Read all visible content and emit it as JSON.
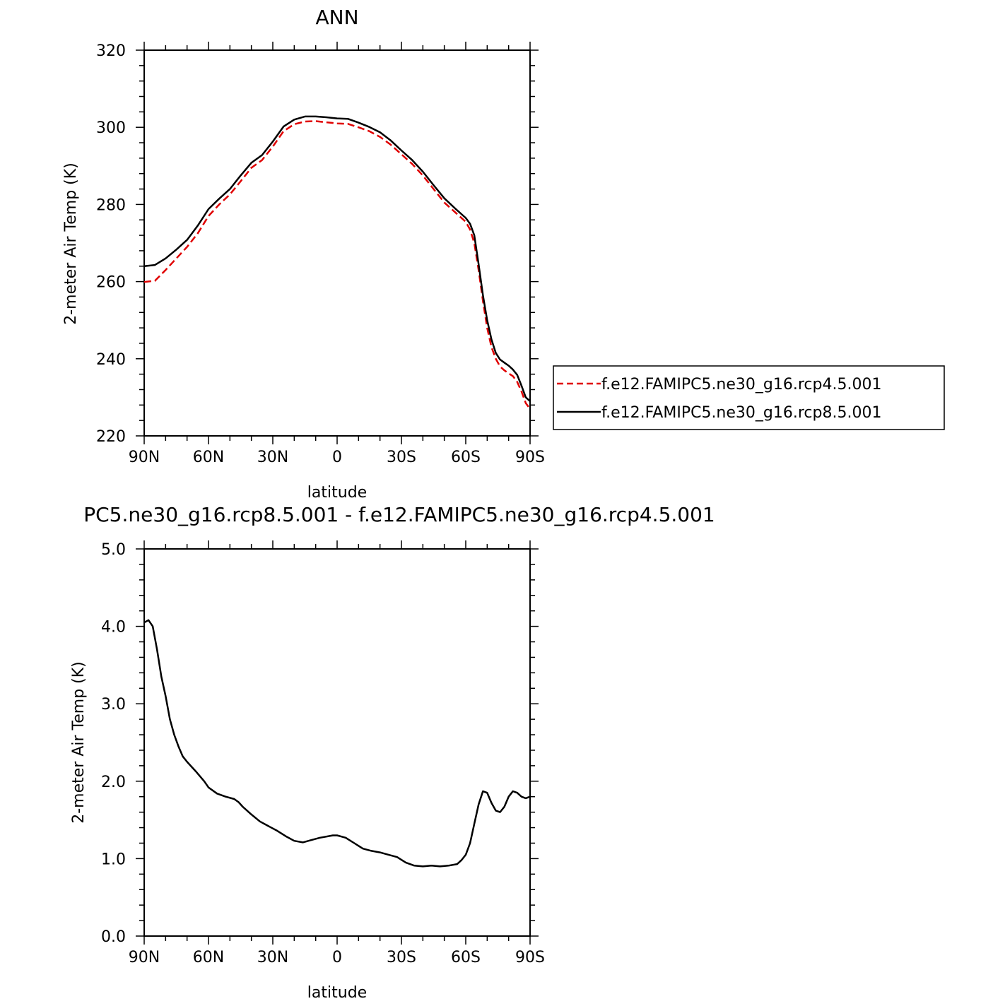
{
  "colors": {
    "series_rcp45": "#e00000",
    "series_rcp85": "#000000",
    "axis": "#000000"
  },
  "chart_data": [
    {
      "type": "line",
      "title": "ANN",
      "xlabel": "latitude",
      "ylabel": "2-meter Air Temp (K)",
      "xlim": [
        90,
        -90
      ],
      "ylim": [
        220,
        320
      ],
      "x_ticks": [
        90,
        60,
        30,
        0,
        -30,
        -60,
        -90
      ],
      "x_tick_labels": [
        "90N",
        "60N",
        "30N",
        "0",
        "30S",
        "60S",
        "90S"
      ],
      "y_ticks": [
        220,
        240,
        260,
        280,
        300,
        320
      ],
      "y_tick_labels": [
        "220",
        "240",
        "260",
        "280",
        "300",
        "320"
      ],
      "legend_position": "right",
      "grid": false,
      "series": [
        {
          "name": "f.e12.FAMIPC5.ne30_g16.rcp4.5.001",
          "style": "dashed",
          "color": "#e00000",
          "x": [
            90,
            85,
            80,
            75,
            70,
            65,
            60,
            55,
            50,
            45,
            40,
            35,
            30,
            25,
            20,
            15,
            10,
            5,
            0,
            -5,
            -10,
            -15,
            -20,
            -25,
            -30,
            -35,
            -40,
            -45,
            -50,
            -55,
            -60,
            -62,
            -64,
            -66,
            -68,
            -70,
            -72,
            -74,
            -76,
            -78,
            -80,
            -82,
            -84,
            -86,
            -88,
            -90
          ],
          "y": [
            259.9,
            260.2,
            263.0,
            266.0,
            269.0,
            272.5,
            277.0,
            280.0,
            282.6,
            286.0,
            289.5,
            291.5,
            295.0,
            299.0,
            300.8,
            301.5,
            301.6,
            301.3,
            301.0,
            300.9,
            300.0,
            299.0,
            297.5,
            295.5,
            293.0,
            290.5,
            287.5,
            284.0,
            280.5,
            278.0,
            275.5,
            273.5,
            270.0,
            263.0,
            255.0,
            248.0,
            243.0,
            240.0,
            238.0,
            237.0,
            236.2,
            235.5,
            234.0,
            231.5,
            228.5,
            227.0
          ]
        },
        {
          "name": "f.e12.FAMIPC5.ne30_g16.rcp8.5.001",
          "style": "solid",
          "color": "#000000",
          "x": [
            90,
            85,
            80,
            75,
            70,
            65,
            60,
            55,
            50,
            45,
            40,
            35,
            30,
            25,
            20,
            15,
            10,
            5,
            0,
            -5,
            -10,
            -15,
            -20,
            -25,
            -30,
            -35,
            -40,
            -45,
            -50,
            -55,
            -60,
            -62,
            -64,
            -66,
            -68,
            -70,
            -72,
            -74,
            -76,
            -78,
            -80,
            -82,
            -84,
            -86,
            -88,
            -90
          ],
          "y": [
            264.0,
            264.3,
            266.0,
            268.3,
            270.8,
            274.5,
            278.8,
            281.5,
            284.0,
            287.5,
            290.8,
            292.8,
            296.3,
            300.2,
            302.0,
            302.8,
            302.8,
            302.6,
            302.3,
            302.2,
            301.2,
            300.1,
            298.7,
            296.6,
            294.0,
            291.5,
            288.5,
            285.0,
            281.6,
            279.0,
            276.5,
            275.0,
            272.0,
            264.5,
            256.5,
            250.0,
            245.0,
            241.5,
            239.8,
            239.0,
            238.2,
            237.2,
            235.8,
            233.0,
            230.0,
            229.0
          ]
        }
      ]
    },
    {
      "type": "line",
      "title": "PC5.ne30_g16.rcp8.5.001 - f.e12.FAMIPC5.ne30_g16.rcp4.5.001",
      "xlabel": "latitude",
      "ylabel": "2-meter Air Temp (K)",
      "xlim": [
        90,
        -90
      ],
      "ylim": [
        0,
        5
      ],
      "x_ticks": [
        90,
        60,
        30,
        0,
        -30,
        -60,
        -90
      ],
      "x_tick_labels": [
        "90N",
        "60N",
        "30N",
        "0",
        "30S",
        "60S",
        "90S"
      ],
      "y_ticks": [
        0,
        1,
        2,
        3,
        4,
        5
      ],
      "y_tick_labels": [
        "0.0",
        "1.0",
        "2.0",
        "3.0",
        "4.0",
        "5.0"
      ],
      "grid": false,
      "series": [
        {
          "style": "solid",
          "color": "#000000",
          "x": [
            90,
            88,
            86,
            84,
            82,
            80,
            78,
            76,
            74,
            72,
            70,
            66,
            62,
            60,
            56,
            52,
            48,
            46,
            44,
            40,
            36,
            32,
            28,
            24,
            20,
            16,
            12,
            8,
            4,
            2,
            0,
            -4,
            -8,
            -12,
            -16,
            -20,
            -24,
            -28,
            -32,
            -36,
            -40,
            -44,
            -48,
            -52,
            -56,
            -58,
            -60,
            -62,
            -64,
            -66,
            -68,
            -70,
            -72,
            -74,
            -76,
            -78,
            -80,
            -82,
            -84,
            -86,
            -88,
            -90
          ],
          "y": [
            4.05,
            4.08,
            4.0,
            3.7,
            3.35,
            3.1,
            2.8,
            2.6,
            2.45,
            2.32,
            2.25,
            2.13,
            2.0,
            1.92,
            1.84,
            1.8,
            1.77,
            1.73,
            1.67,
            1.57,
            1.48,
            1.42,
            1.36,
            1.29,
            1.23,
            1.21,
            1.24,
            1.27,
            1.29,
            1.3,
            1.3,
            1.27,
            1.2,
            1.13,
            1.1,
            1.08,
            1.05,
            1.02,
            0.95,
            0.91,
            0.9,
            0.91,
            0.9,
            0.91,
            0.93,
            0.98,
            1.05,
            1.2,
            1.45,
            1.7,
            1.87,
            1.85,
            1.72,
            1.62,
            1.6,
            1.67,
            1.8,
            1.87,
            1.85,
            1.8,
            1.78,
            1.8
          ]
        }
      ]
    }
  ]
}
